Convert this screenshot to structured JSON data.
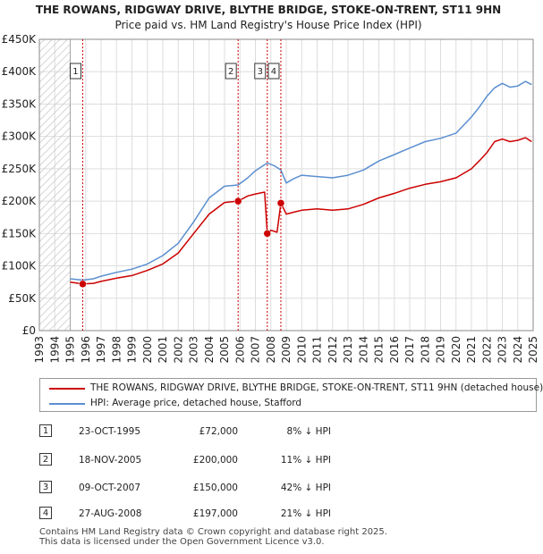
{
  "chart_data": {
    "type": "line",
    "title": "THE ROWANS, RIDGWAY DRIVE, BLYTHE BRIDGE, STOKE-ON-TRENT, ST11 9HN",
    "subtitle": "Price paid vs. HM Land Registry's House Price Index (HPI)",
    "xlim": [
      1993,
      2025
    ],
    "ylim": [
      0,
      450000
    ],
    "y_ticks": [
      {
        "value": 0,
        "label": "£0"
      },
      {
        "value": 50000,
        "label": "£50K"
      },
      {
        "value": 100000,
        "label": "£100K"
      },
      {
        "value": 150000,
        "label": "£150K"
      },
      {
        "value": 200000,
        "label": "£200K"
      },
      {
        "value": 250000,
        "label": "£250K"
      },
      {
        "value": 300000,
        "label": "£300K"
      },
      {
        "value": 350000,
        "label": "£350K"
      },
      {
        "value": 400000,
        "label": "£400K"
      },
      {
        "value": 450000,
        "label": "£450K"
      }
    ],
    "x_ticks": [
      "1993",
      "1994",
      "1995",
      "1996",
      "1997",
      "1998",
      "1999",
      "2000",
      "2001",
      "2002",
      "2003",
      "2004",
      "2005",
      "2006",
      "2007",
      "2008",
      "2009",
      "2010",
      "2011",
      "2012",
      "2013",
      "2014",
      "2015",
      "2016",
      "2017",
      "2018",
      "2019",
      "2020",
      "2021",
      "2022",
      "2023",
      "2024",
      "2025"
    ],
    "data_start_year": 1995.0,
    "series": [
      {
        "name": "THE ROWANS, RIDGWAY DRIVE, BLYTHE BRIDGE, STOKE-ON-TRENT, ST11 9HN (detached house)",
        "color": "#cc0000",
        "points": [
          [
            1995.0,
            75000
          ],
          [
            1995.81,
            72000
          ],
          [
            1996.5,
            73000
          ],
          [
            1997,
            76000
          ],
          [
            1998,
            81000
          ],
          [
            1999,
            85000
          ],
          [
            2000,
            93000
          ],
          [
            2001,
            103000
          ],
          [
            2002,
            120000
          ],
          [
            2003,
            150000
          ],
          [
            2004,
            180000
          ],
          [
            2005,
            198000
          ],
          [
            2005.88,
            200000
          ],
          [
            2006.5,
            208000
          ],
          [
            2007.0,
            211000
          ],
          [
            2007.6,
            214000
          ],
          [
            2007.77,
            150000
          ],
          [
            2008,
            155000
          ],
          [
            2008.4,
            152000
          ],
          [
            2008.65,
            197000
          ],
          [
            2009.0,
            180000
          ],
          [
            2009.5,
            183000
          ],
          [
            2010,
            186000
          ],
          [
            2011,
            188000
          ],
          [
            2012,
            186000
          ],
          [
            2013,
            188000
          ],
          [
            2014,
            195000
          ],
          [
            2015,
            205000
          ],
          [
            2016,
            212000
          ],
          [
            2017,
            220000
          ],
          [
            2018,
            226000
          ],
          [
            2019,
            230000
          ],
          [
            2020,
            236000
          ],
          [
            2021,
            250000
          ],
          [
            2021.5,
            262000
          ],
          [
            2022,
            275000
          ],
          [
            2022.5,
            292000
          ],
          [
            2023,
            296000
          ],
          [
            2023.5,
            292000
          ],
          [
            2024,
            294000
          ],
          [
            2024.5,
            298000
          ],
          [
            2024.9,
            292000
          ]
        ]
      },
      {
        "name": "HPI: Average price, detached house, Stafford",
        "color": "#5b8fd0",
        "points": [
          [
            1995.0,
            80000
          ],
          [
            1995.81,
            78000
          ],
          [
            1996.5,
            80000
          ],
          [
            1997,
            84000
          ],
          [
            1998,
            90000
          ],
          [
            1999,
            95000
          ],
          [
            2000,
            103000
          ],
          [
            2001,
            116000
          ],
          [
            2002,
            135000
          ],
          [
            2003,
            168000
          ],
          [
            2004,
            205000
          ],
          [
            2005,
            223000
          ],
          [
            2005.88,
            225000
          ],
          [
            2006.5,
            236000
          ],
          [
            2007.0,
            247000
          ],
          [
            2007.77,
            259000
          ],
          [
            2008.2,
            255000
          ],
          [
            2008.65,
            248000
          ],
          [
            2009.0,
            228000
          ],
          [
            2009.5,
            235000
          ],
          [
            2010,
            240000
          ],
          [
            2011,
            238000
          ],
          [
            2012,
            236000
          ],
          [
            2013,
            240000
          ],
          [
            2014,
            248000
          ],
          [
            2015,
            262000
          ],
          [
            2016,
            272000
          ],
          [
            2017,
            282000
          ],
          [
            2018,
            292000
          ],
          [
            2019,
            297000
          ],
          [
            2020,
            305000
          ],
          [
            2021,
            330000
          ],
          [
            2021.5,
            345000
          ],
          [
            2022,
            362000
          ],
          [
            2022.5,
            375000
          ],
          [
            2023,
            382000
          ],
          [
            2023.5,
            376000
          ],
          [
            2024,
            378000
          ],
          [
            2024.5,
            385000
          ],
          [
            2024.9,
            380000
          ]
        ]
      }
    ],
    "sales": [
      {
        "id": "1",
        "x": 1995.81,
        "y": 72000
      },
      {
        "id": "2",
        "x": 2005.88,
        "y": 200000
      },
      {
        "id": "3",
        "x": 2007.77,
        "y": 150000
      },
      {
        "id": "4",
        "x": 2008.65,
        "y": 197000
      }
    ]
  },
  "legend": {
    "property_label": "THE ROWANS, RIDGWAY DRIVE, BLYTHE BRIDGE, STOKE-ON-TRENT, ST11 9HN (detached house)",
    "hpi_label": "HPI: Average price, detached house, Stafford"
  },
  "transactions": [
    {
      "num": "1",
      "date": "23-OCT-1995",
      "price": "£72,000",
      "hpi": "8% ↓ HPI"
    },
    {
      "num": "2",
      "date": "18-NOV-2005",
      "price": "£200,000",
      "hpi": "11% ↓ HPI"
    },
    {
      "num": "3",
      "date": "09-OCT-2007",
      "price": "£150,000",
      "hpi": "42% ↓ HPI"
    },
    {
      "num": "4",
      "date": "27-AUG-2008",
      "price": "£197,000",
      "hpi": "21% ↓ HPI"
    }
  ],
  "footer": {
    "line1": "Contains HM Land Registry data © Crown copyright and database right 2025.",
    "line2": "This data is licensed under the Open Government Licence v3.0."
  },
  "colors": {
    "property": "#cc0000",
    "hpi": "#5b8fd0",
    "marker_line": "#cc0000",
    "grid": "#dddddd"
  }
}
